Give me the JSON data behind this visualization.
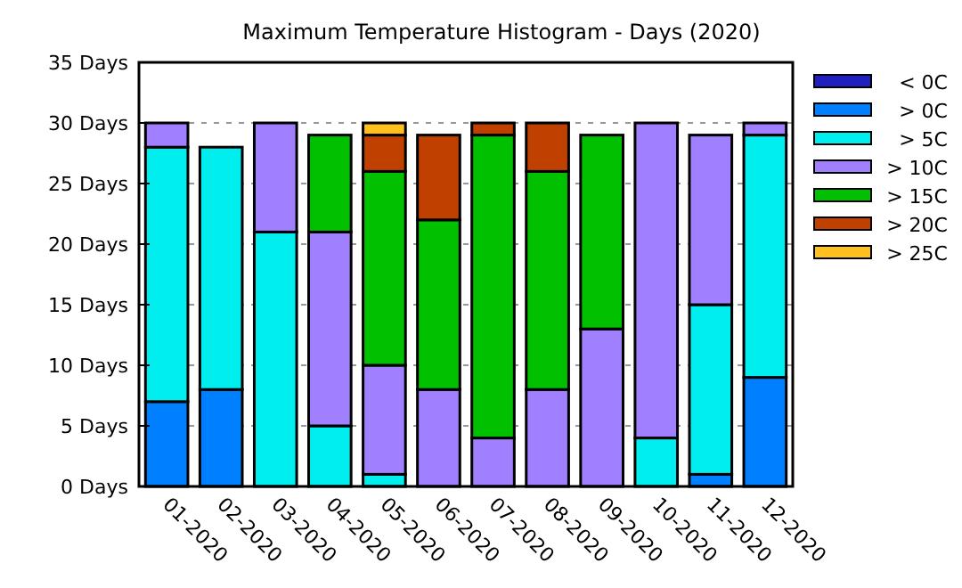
{
  "chart_data": {
    "type": "bar",
    "stacked": true,
    "title": "Maximum Temperature Histogram - Days (2020)",
    "categories": [
      "01-2020",
      "02-2020",
      "03-2020",
      "04-2020",
      "05-2020",
      "06-2020",
      "07-2020",
      "08-2020",
      "09-2020",
      "10-2020",
      "11-2020",
      "12-2020"
    ],
    "series": [
      {
        "name": "< 0C",
        "color": "#2020c0",
        "values": [
          0,
          0,
          0,
          0,
          0,
          0,
          0,
          0,
          0,
          0,
          0,
          0
        ]
      },
      {
        "name": "> 0C",
        "color": "#0080ff",
        "values": [
          7,
          8,
          0,
          0,
          0,
          0,
          0,
          0,
          0,
          0,
          1,
          9
        ]
      },
      {
        "name": "> 5C",
        "color": "#00eeee",
        "values": [
          21,
          20,
          21,
          5,
          1,
          0,
          0,
          0,
          0,
          4,
          14,
          20
        ]
      },
      {
        "name": "> 10C",
        "color": "#a080ff",
        "values": [
          2,
          0,
          9,
          16,
          9,
          8,
          4,
          8,
          13,
          26,
          14,
          1
        ]
      },
      {
        "name": "> 15C",
        "color": "#00c000",
        "values": [
          0,
          0,
          0,
          8,
          16,
          14,
          25,
          18,
          16,
          0,
          0,
          0
        ]
      },
      {
        "name": "> 20C",
        "color": "#c04000",
        "values": [
          0,
          0,
          0,
          0,
          3,
          7,
          1,
          4,
          0,
          0,
          0,
          0
        ]
      },
      {
        "name": "> 25C",
        "color": "#ffc020",
        "values": [
          0,
          0,
          0,
          0,
          1,
          0,
          0,
          0,
          0,
          0,
          0,
          0
        ]
      }
    ],
    "ylim": [
      0,
      35
    ],
    "yticks": [
      {
        "value": 0,
        "label": "0 Days"
      },
      {
        "value": 5,
        "label": "5 Days"
      },
      {
        "value": 10,
        "label": "10 Days"
      },
      {
        "value": 15,
        "label": "15 Days"
      },
      {
        "value": 20,
        "label": "20 Days"
      },
      {
        "value": 25,
        "label": "25 Days"
      },
      {
        "value": 30,
        "label": "30 Days"
      },
      {
        "value": 35,
        "label": "35 Days"
      }
    ],
    "grid": "y",
    "legend": "right"
  }
}
